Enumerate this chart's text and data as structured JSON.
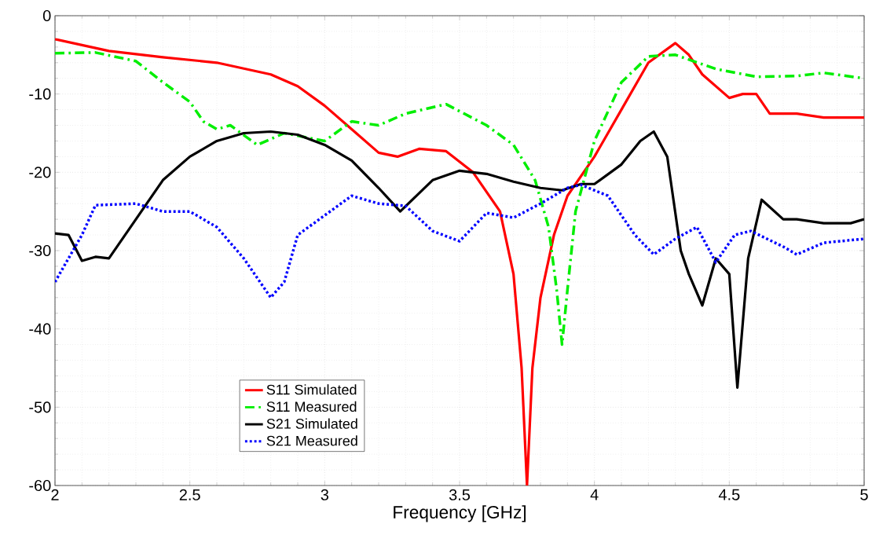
{
  "chart_data": {
    "type": "line",
    "xlabel": "Frequency [GHz]",
    "xlim": [
      2,
      5
    ],
    "ylim": [
      -60,
      0
    ],
    "xticks": [
      2,
      2.5,
      3,
      3.5,
      4,
      4.5,
      5
    ],
    "yticks": [
      -60,
      -50,
      -40,
      -30,
      -20,
      -10,
      0
    ],
    "grid": true,
    "legend": "bottom left",
    "marker": "none",
    "series": [
      {
        "name": "S11 Simulated",
        "color": "#ff0000",
        "line_style": "solid",
        "x": [
          2,
          2.2,
          2.4,
          2.6,
          2.8,
          2.9,
          3,
          3.1,
          3.2,
          3.27,
          3.35,
          3.45,
          3.55,
          3.65,
          3.7,
          3.73,
          3.75,
          3.77,
          3.8,
          3.85,
          3.9,
          4,
          4.1,
          4.2,
          4.3,
          4.35,
          4.4,
          4.5,
          4.55,
          4.6,
          4.65,
          4.75,
          4.85,
          5
        ],
        "values": [
          -3,
          -4.5,
          -5.3,
          -6,
          -7.5,
          -9,
          -11.5,
          -14.5,
          -17.5,
          -18,
          -17,
          -17.3,
          -20,
          -25,
          -33,
          -45,
          -60,
          -45,
          -36,
          -28,
          -23,
          -18,
          -12,
          -6,
          -3.5,
          -5,
          -7.5,
          -10.5,
          -10,
          -10,
          -12.5,
          -12.5,
          -13,
          -13
        ]
      },
      {
        "name": "S11 Measured",
        "color": "#00ee00",
        "line_style": "dashdot",
        "x": [
          2,
          2.15,
          2.3,
          2.4,
          2.5,
          2.55,
          2.6,
          2.65,
          2.75,
          2.85,
          3,
          3.1,
          3.2,
          3.3,
          3.45,
          3.6,
          3.7,
          3.78,
          3.83,
          3.86,
          3.88,
          3.9,
          3.93,
          4,
          4.1,
          4.2,
          4.3,
          4.45,
          4.6,
          4.75,
          4.85,
          5
        ],
        "values": [
          -4.8,
          -4.7,
          -5.8,
          -8.5,
          -11,
          -13.5,
          -14.5,
          -14,
          -16.5,
          -15,
          -16,
          -13.5,
          -14,
          -12.5,
          -11.3,
          -14,
          -16.5,
          -21,
          -27,
          -35,
          -42,
          -35,
          -25,
          -16,
          -8.5,
          -5.2,
          -5,
          -6.8,
          -7.8,
          -7.7,
          -7.3,
          -8
        ]
      },
      {
        "name": "S21 Simulated",
        "color": "#000000",
        "line_style": "solid",
        "x": [
          2,
          2.05,
          2.1,
          2.15,
          2.2,
          2.3,
          2.4,
          2.5,
          2.6,
          2.7,
          2.8,
          2.9,
          3,
          3.1,
          3.2,
          3.28,
          3.4,
          3.5,
          3.6,
          3.7,
          3.8,
          3.88,
          3.95,
          4,
          4.1,
          4.17,
          4.22,
          4.27,
          4.32,
          4.35,
          4.4,
          4.45,
          4.5,
          4.53,
          4.57,
          4.62,
          4.7,
          4.75,
          4.85,
          4.95,
          5
        ],
        "values": [
          -27.8,
          -28,
          -31.3,
          -30.8,
          -31,
          -26,
          -21,
          -18,
          -16,
          -15,
          -14.8,
          -15.2,
          -16.5,
          -18.5,
          -22,
          -25,
          -21,
          -19.8,
          -20.2,
          -21.2,
          -22,
          -22.3,
          -21.5,
          -21.5,
          -19,
          -16,
          -14.8,
          -18,
          -30,
          -33,
          -37,
          -31,
          -33,
          -47.5,
          -31,
          -23.5,
          -26,
          -26,
          -26.5,
          -26.5,
          -26
        ]
      },
      {
        "name": "S21 Measured",
        "color": "#0000ff",
        "line_style": "dotted",
        "x": [
          2,
          2.1,
          2.15,
          2.3,
          2.4,
          2.5,
          2.6,
          2.7,
          2.8,
          2.85,
          2.9,
          3,
          3.1,
          3.2,
          3.3,
          3.4,
          3.5,
          3.6,
          3.7,
          3.8,
          3.9,
          3.95,
          4.05,
          4.15,
          4.22,
          4.3,
          4.38,
          4.45,
          4.52,
          4.58,
          4.7,
          4.75,
          4.85,
          5
        ],
        "values": [
          -34,
          -28,
          -24.2,
          -24,
          -25,
          -25,
          -27,
          -31,
          -36,
          -34,
          -28,
          -25.5,
          -23,
          -24,
          -24.3,
          -27.5,
          -28.8,
          -25.2,
          -25.8,
          -24,
          -22,
          -21.6,
          -23,
          -28,
          -30.5,
          -28.5,
          -27,
          -31.5,
          -28,
          -27.5,
          -29.5,
          -30.5,
          -29,
          -28.5
        ]
      }
    ]
  }
}
